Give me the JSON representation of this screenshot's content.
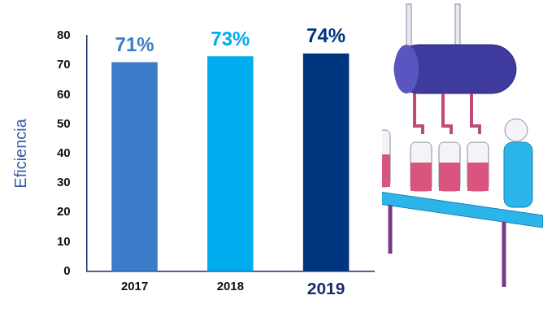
{
  "chart_data": {
    "type": "bar",
    "categories": [
      "2017",
      "2018",
      "2019"
    ],
    "values": [
      71,
      73,
      74
    ],
    "value_labels": [
      "71%",
      "73%",
      "74%"
    ],
    "colors": [
      "#3d7cc9",
      "#00aeef",
      "#003580"
    ],
    "y_label": "Eficiencia",
    "ylim": [
      0,
      80
    ],
    "yticks": [
      0,
      10,
      20,
      30,
      40,
      50,
      60,
      70,
      80
    ],
    "grid": false,
    "data_labels": true
  }
}
